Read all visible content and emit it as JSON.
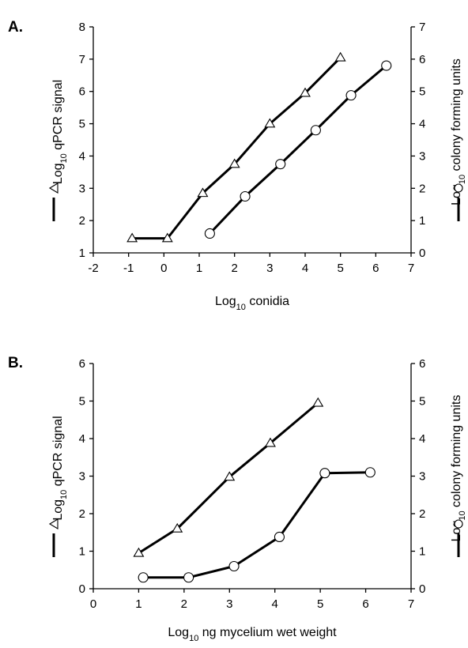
{
  "chart_data": [
    {
      "type": "line",
      "panel_label": "A.",
      "xlabel": {
        "base": "Log",
        "sub": "10",
        "rest": " conidia"
      },
      "ylabel_left": {
        "base": "Log",
        "sub": "10",
        "rest": " qPCR signal"
      },
      "ylabel_right": {
        "base": "Log",
        "sub": "10",
        "rest": " colony forming units"
      },
      "xlim": [
        -2,
        7
      ],
      "xticks": [
        -2,
        -1,
        0,
        1,
        2,
        3,
        4,
        5,
        6,
        7
      ],
      "ylim_left": [
        1,
        8
      ],
      "yticks_left": [
        1,
        2,
        3,
        4,
        5,
        6,
        7,
        8
      ],
      "ylim_right": [
        0,
        7
      ],
      "yticks_right": [
        0,
        1,
        2,
        3,
        4,
        5,
        6,
        7
      ],
      "grid": false,
      "series": [
        {
          "marker": "triangle",
          "axis": "left",
          "x": [
            -0.9,
            0.1,
            1.1,
            2.0,
            3.0,
            4.0,
            5.0
          ],
          "y": [
            1.45,
            1.45,
            2.85,
            3.75,
            5.0,
            5.95,
            7.05
          ]
        },
        {
          "marker": "circle",
          "axis": "right",
          "x": [
            1.3,
            2.3,
            3.3,
            4.3,
            5.3,
            6.3
          ],
          "y": [
            0.6,
            1.75,
            2.75,
            3.8,
            4.88,
            5.8
          ]
        }
      ]
    },
    {
      "type": "line",
      "panel_label": "B.",
      "xlabel": {
        "base": "Log",
        "sub": "10",
        "rest": " ng mycelium wet weight"
      },
      "ylabel_left": {
        "base": "Log",
        "sub": "10",
        "rest": " qPCR signal"
      },
      "ylabel_right": {
        "base": "Log",
        "sub": "10",
        "rest": " colony forming units"
      },
      "xlim": [
        0,
        7
      ],
      "xticks": [
        0,
        1,
        2,
        3,
        4,
        5,
        6,
        7
      ],
      "ylim_left": [
        0,
        6
      ],
      "yticks_left": [
        0,
        1,
        2,
        3,
        4,
        5,
        6
      ],
      "ylim_right": [
        0,
        6
      ],
      "yticks_right": [
        0,
        1,
        2,
        3,
        4,
        5,
        6
      ],
      "grid": false,
      "series": [
        {
          "marker": "triangle",
          "axis": "left",
          "x": [
            1.0,
            1.85,
            3.0,
            3.9,
            4.95
          ],
          "y": [
            0.95,
            1.6,
            2.98,
            3.88,
            4.95
          ]
        },
        {
          "marker": "circle",
          "axis": "right",
          "x": [
            1.1,
            2.1,
            3.1,
            4.1,
            5.1,
            6.1
          ],
          "y": [
            0.3,
            0.3,
            0.6,
            1.38,
            3.08,
            3.1
          ]
        }
      ]
    }
  ]
}
